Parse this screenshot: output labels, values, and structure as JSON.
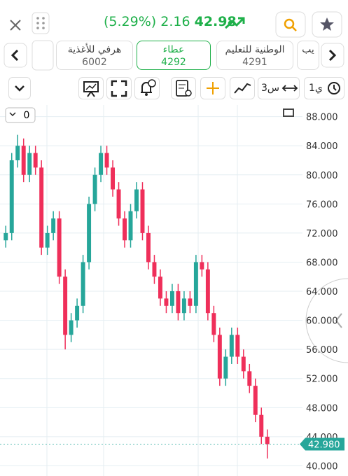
{
  "header": {
    "change_pct": "(5.29%)",
    "change": "2.16",
    "price": "42.98"
  },
  "tabs": [
    {
      "name": "هرفي للأغذية",
      "code": "6002"
    },
    {
      "name": "عطاء",
      "code": "4292"
    },
    {
      "name": "الوطنية للتعليم",
      "code": "4291"
    },
    {
      "name": "يب"
    }
  ],
  "toolbar": {
    "interval": "3س",
    "range": "1ي"
  },
  "indicators": "0",
  "chart_data": {
    "type": "candlestick",
    "ylim": [
      38.6,
      89.6
    ],
    "yticks": [
      {
        "value": 88,
        "label": "88.000"
      },
      {
        "value": 84,
        "label": "84.000"
      },
      {
        "value": 80,
        "label": "80.000"
      },
      {
        "value": 76,
        "label": "76.000"
      },
      {
        "value": 72,
        "label": "72.000"
      },
      {
        "value": 68,
        "label": "68.000"
      },
      {
        "value": 64,
        "label": "64.000"
      },
      {
        "value": 60,
        "label": "60.000"
      },
      {
        "value": 56,
        "label": "56.000"
      },
      {
        "value": 52,
        "label": "52.000"
      },
      {
        "value": 48,
        "label": "48.000"
      },
      {
        "value": 44,
        "label": "44.000"
      },
      {
        "value": 40,
        "label": "40.000"
      }
    ],
    "last_price": {
      "value": 42.98,
      "label": "42.980"
    },
    "up_color": "#26a69a",
    "down_color": "#ef2f5a",
    "open": [
      71,
      72,
      82,
      84,
      80,
      83,
      81,
      70,
      72,
      74,
      66,
      58,
      60,
      62,
      68,
      76,
      80,
      83,
      81,
      78,
      74,
      71,
      75,
      78,
      72,
      68,
      66,
      63,
      62,
      64,
      61,
      63,
      62,
      68,
      67,
      61,
      58,
      52,
      55,
      58,
      55,
      53,
      51,
      47,
      44
    ],
    "high": [
      73,
      83,
      85.5,
      85,
      84,
      84,
      82,
      73,
      75,
      75,
      67,
      61,
      63,
      69,
      77,
      81,
      84,
      84,
      82,
      79,
      75,
      76,
      79,
      79,
      73,
      69,
      67,
      64,
      65,
      65,
      64,
      64,
      69,
      69,
      68,
      62,
      59,
      56,
      59,
      59,
      56,
      54,
      52,
      48,
      45
    ],
    "low": [
      70,
      71,
      81,
      79,
      79,
      80,
      69,
      69,
      71,
      65,
      56,
      57,
      59,
      61,
      67,
      75,
      79,
      80,
      77,
      73,
      70,
      70,
      74,
      71,
      67,
      65,
      62,
      61,
      61,
      60,
      60,
      61,
      61,
      66,
      60,
      57,
      51,
      51,
      54,
      54,
      52,
      50,
      46,
      43,
      41
    ],
    "close": [
      72,
      82,
      84,
      80,
      83,
      81,
      70,
      72,
      74,
      66,
      58,
      60,
      62,
      68,
      76,
      80,
      83,
      81,
      78,
      74,
      71,
      75,
      78,
      72,
      68,
      66,
      63,
      62,
      64,
      61,
      63,
      62,
      68,
      67,
      61,
      58,
      52,
      55,
      58,
      55,
      53,
      51,
      47,
      44,
      42.98
    ]
  }
}
